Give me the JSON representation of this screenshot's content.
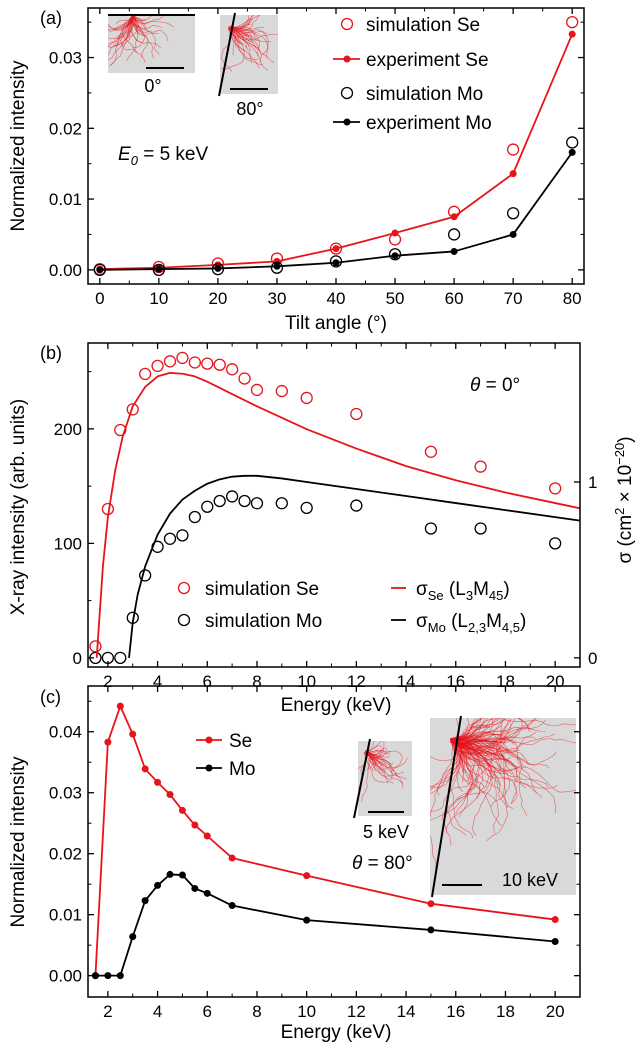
{
  "colors": {
    "se": "#e8141c",
    "mo": "#000000",
    "inset_bg": "#d9d9d9",
    "trace": "#e8141c"
  },
  "chart_data": [
    {
      "panel": "(a)",
      "type": "line",
      "xlabel": "Tilt angle (°)",
      "ylabel": "Normalized intensity",
      "xlim": [
        -2,
        82
      ],
      "ylim": [
        -0.002,
        0.037
      ],
      "xticks": [
        0,
        10,
        20,
        30,
        40,
        50,
        60,
        70,
        80
      ],
      "yticks": [
        0,
        0.01,
        0.02,
        0.03
      ],
      "ytick_labels": [
        "0.00",
        "0.01",
        "0.02",
        "0.03"
      ],
      "x": [
        0,
        10,
        20,
        30,
        40,
        50,
        60,
        70,
        80
      ],
      "annotation": {
        "var": "E",
        "sub": "0",
        "rest": " = 5 keV"
      },
      "insets": [
        {
          "label": "0°"
        },
        {
          "label": "80°"
        }
      ],
      "legend_position": "top-right",
      "series": [
        {
          "name": "simulation Se",
          "style": "open-circle",
          "color": "#e8141c",
          "values": [
            0.0001,
            0.0004,
            0.0009,
            0.0016,
            0.003,
            0.0043,
            0.0082,
            0.017,
            0.035
          ]
        },
        {
          "name": "experiment Se",
          "style": "line-dot",
          "color": "#e8141c",
          "values": [
            0.0001,
            0.0003,
            0.0007,
            0.0012,
            0.003,
            0.0052,
            0.0075,
            0.0136,
            0.0333
          ]
        },
        {
          "name": "simulation Mo",
          "style": "open-circle",
          "color": "#000000",
          "values": [
            0.0,
            0.0,
            0.0001,
            0.0003,
            0.0012,
            0.0022,
            0.005,
            0.008,
            0.018
          ]
        },
        {
          "name": "experiment Mo",
          "style": "line-dot",
          "color": "#000000",
          "values": [
            0.0,
            0.0001,
            0.0002,
            0.0005,
            0.001,
            0.002,
            0.0026,
            0.005,
            0.0166
          ]
        }
      ]
    },
    {
      "panel": "(b)",
      "type": "scatter",
      "xlabel": "Energy (keV)",
      "ylabel": "X-ray intensity (arb. units)",
      "ylabel_right": "σ (cm² × 10⁻²⁰)",
      "xlim": [
        1.2,
        21
      ],
      "ylim": [
        -8,
        275
      ],
      "xticks": [
        2,
        4,
        6,
        8,
        10,
        12,
        14,
        16,
        18,
        20
      ],
      "yticks": [
        0,
        100,
        200
      ],
      "right_ylim": [
        -0.052,
        1.79
      ],
      "right_yticks": [
        0,
        1
      ],
      "annotation": {
        "var": "θ",
        "rest": " = 0°"
      },
      "legend_position": "bottom",
      "series": [
        {
          "name": "simulation Se",
          "style": "open-circle",
          "color": "#e8141c",
          "x": [
            1.5,
            2,
            2.5,
            3,
            3.5,
            4,
            4.5,
            5,
            5.5,
            6,
            6.5,
            7,
            7.5,
            8,
            9,
            10,
            12,
            15,
            17,
            20
          ],
          "values": [
            10,
            130,
            199,
            217,
            248,
            255,
            259,
            262,
            258,
            257,
            256,
            252,
            244,
            234,
            233,
            227,
            213,
            180,
            167,
            148
          ]
        },
        {
          "name": "simulation Mo",
          "style": "open-circle",
          "color": "#000000",
          "x": [
            1.5,
            2,
            2.5,
            3,
            3.5,
            4,
            4.5,
            5,
            5.5,
            6,
            6.5,
            7,
            7.5,
            8,
            9,
            10,
            12,
            15,
            17,
            20
          ],
          "values": [
            0,
            0,
            0,
            35,
            72,
            97,
            104,
            107,
            123,
            132,
            137,
            141,
            137,
            135,
            135,
            131,
            133,
            113,
            113,
            100
          ]
        },
        {
          "name_parts": {
            "sym": "σ",
            "sub1": "Se",
            "pre": " (L",
            "sub2": "3",
            "mid": "M",
            "sub3": "45",
            "post": ")"
          },
          "style": "line",
          "color": "#e8141c",
          "axis": "right",
          "x": [
            1.55,
            1.8,
            2.0,
            2.3,
            2.6,
            3.0,
            3.5,
            4.0,
            4.5,
            5.0,
            5.5,
            6.0,
            7.0,
            8.0,
            10.0,
            12.0,
            14.0,
            16.0,
            18.0,
            20.0,
            21.0
          ],
          "values": [
            0.0,
            0.52,
            0.8,
            1.07,
            1.26,
            1.43,
            1.54,
            1.6,
            1.62,
            1.615,
            1.6,
            1.57,
            1.5,
            1.43,
            1.3,
            1.19,
            1.09,
            1.01,
            0.94,
            0.88,
            0.85
          ]
        },
        {
          "name_parts": {
            "sym": "σ",
            "sub1": "Mo",
            "pre": " (L",
            "sub2": "2,3",
            "mid": "M",
            "sub3": "4,5",
            "post": ")"
          },
          "style": "line",
          "color": "#000000",
          "axis": "right",
          "x": [
            2.85,
            3.0,
            3.2,
            3.5,
            4.0,
            4.5,
            5.0,
            5.5,
            6.0,
            6.5,
            7.0,
            7.5,
            8.0,
            9.0,
            10.0,
            12.0,
            14.0,
            16.0,
            18.0,
            20.0,
            21.0
          ],
          "values": [
            0.0,
            0.2,
            0.36,
            0.52,
            0.7,
            0.82,
            0.9,
            0.95,
            0.99,
            1.015,
            1.03,
            1.035,
            1.035,
            1.02,
            1.0,
            0.96,
            0.92,
            0.88,
            0.84,
            0.8,
            0.78
          ]
        }
      ]
    },
    {
      "panel": "(c)",
      "type": "line",
      "xlabel": "Energy (keV)",
      "ylabel": "Normalized intensity",
      "xlim": [
        1.2,
        21
      ],
      "ylim": [
        -0.0035,
        0.0475
      ],
      "xticks": [
        2,
        4,
        6,
        8,
        10,
        12,
        14,
        16,
        18,
        20
      ],
      "yticks": [
        0,
        0.01,
        0.02,
        0.03,
        0.04
      ],
      "ytick_labels": [
        "0.00",
        "0.01",
        "0.02",
        "0.03",
        "0.04"
      ],
      "insets": [
        {
          "label": "5 keV"
        },
        {
          "label": "10 keV"
        }
      ],
      "annotation": {
        "var": "θ",
        "rest": " = 80°"
      },
      "legend_position": "top-left",
      "series": [
        {
          "name": "Se",
          "style": "line-dot",
          "color": "#e8141c",
          "x": [
            1.5,
            2,
            2.5,
            3,
            3.5,
            4,
            4.5,
            5,
            5.5,
            6,
            7,
            10,
            15,
            20
          ],
          "values": [
            0.0,
            0.0383,
            0.0442,
            0.0396,
            0.0339,
            0.0317,
            0.0297,
            0.0271,
            0.0247,
            0.0229,
            0.0193,
            0.0164,
            0.0118,
            0.0092
          ]
        },
        {
          "name": "Mo",
          "style": "line-dot",
          "color": "#000000",
          "x": [
            1.5,
            2,
            2.5,
            3,
            3.5,
            4,
            4.5,
            5,
            5.5,
            6,
            7,
            10,
            15,
            20
          ],
          "values": [
            0.0,
            0.0,
            0.0,
            0.0064,
            0.0123,
            0.0148,
            0.0166,
            0.0165,
            0.0143,
            0.0135,
            0.0115,
            0.0091,
            0.0075,
            0.0056
          ]
        }
      ]
    }
  ]
}
